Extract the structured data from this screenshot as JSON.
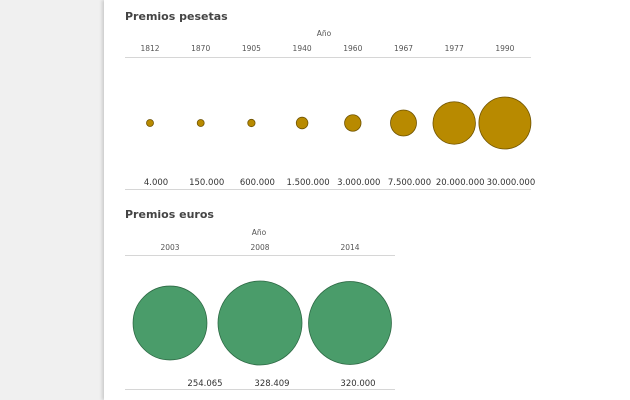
{
  "chart_data": [
    {
      "type": "bubble",
      "title": "Premios pesetas",
      "xlabel": "Año",
      "categories": [
        "1812",
        "1870",
        "1905",
        "1940",
        "1960",
        "1967",
        "1977",
        "1990"
      ],
      "values": [
        4000,
        150000,
        600000,
        1500000,
        3000000,
        7500000,
        20000000,
        30000000
      ],
      "value_labels": [
        "4.000",
        "150.000",
        "600.000",
        "1.500.000",
        "3.000.000",
        "7.500.000",
        "20.000.000",
        "30.000.000"
      ],
      "color": "#b88a00"
    },
    {
      "type": "bubble",
      "title": "Premios euros",
      "xlabel": "Año",
      "categories": [
        "2003",
        "2008",
        "2014"
      ],
      "values": [
        254065,
        328409,
        320000
      ],
      "value_labels": [
        "254.065",
        "328.409",
        "320.000"
      ],
      "color": "#4a9c6a"
    }
  ]
}
